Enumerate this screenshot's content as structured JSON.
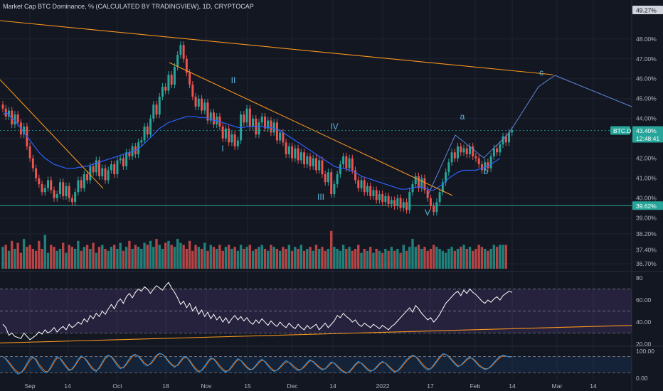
{
  "header": {
    "title": "Market Cap BTC Dominance, % (CALCULATED BY TRADINGVIEW), 1D, CRYPTOCAP"
  },
  "colors": {
    "background": "#131722",
    "grid": "#1f2330",
    "up": "#26a69a",
    "down": "#ef5350",
    "ma": "#2962ff",
    "trendline": "#f7941d",
    "projection": "#5d86d6",
    "rsi_line": "#ffffff",
    "rsi_band": "#7e57c2",
    "stoch_k": "#2196f3",
    "stoch_d": "#ff6d00"
  },
  "chart_data": {
    "type": "candlestick",
    "symbol_tag": "BTC.D",
    "last_price_label": "43.40%",
    "countdown_label": "12:48:41",
    "top_price_label": "49.27%",
    "support_label": "39.62%",
    "price_ticks": [
      "48.00%",
      "47.00%",
      "46.00%",
      "45.00%",
      "44.00%",
      "43.00%",
      "42.00%",
      "41.00%",
      "40.00%",
      "39.00%",
      "38.20%",
      "37.40%",
      "36.70%"
    ],
    "price_ylim": [
      36.45,
      49.6
    ],
    "date_ticks": [
      "Sep",
      "14",
      "Oct",
      "18",
      "Nov",
      "15",
      "Dec",
      "14",
      "2022",
      "17",
      "Feb",
      "14",
      "Mar",
      "14"
    ],
    "wave_labels": [
      "I",
      "II",
      "III",
      "IV",
      "V",
      "a",
      "b",
      "c"
    ],
    "support_level": 39.62,
    "close_series": [
      44.5,
      44.1,
      44.4,
      43.7,
      44.2,
      43.8,
      43.2,
      43.6,
      42.6,
      42.0,
      41.5,
      41.0,
      40.7,
      40.3,
      40.5,
      40.9,
      40.4,
      40.0,
      40.2,
      40.8,
      40.1,
      40.6,
      40.0,
      39.8,
      40.3,
      40.9,
      40.5,
      41.2,
      40.9,
      41.6,
      41.3,
      41.9,
      41.1,
      41.5,
      40.9,
      41.4,
      41.7,
      41.2,
      41.9,
      42.0,
      41.6,
      42.3,
      42.1,
      42.6,
      42.2,
      42.8,
      42.9,
      43.6,
      43.2,
      44.0,
      44.7,
      44.2,
      45.1,
      45.6,
      45.4,
      46.2,
      45.7,
      46.6,
      47.2,
      47.7,
      47.0,
      46.3,
      45.7,
      45.1,
      44.6,
      45.0,
      44.4,
      44.8,
      43.9,
      44.3,
      43.7,
      44.1,
      43.6,
      43.0,
      43.5,
      42.8,
      43.2,
      42.6,
      42.9,
      44.2,
      43.8,
      44.5,
      43.6,
      44.0,
      43.2,
      43.8,
      44.1,
      43.5,
      43.9,
      43.3,
      43.8,
      42.9,
      43.3,
      42.8,
      42.2,
      42.6,
      42.0,
      42.5,
      41.9,
      42.3,
      41.7,
      42.1,
      41.6,
      42.0,
      41.4,
      41.9,
      41.2,
      40.8,
      41.3,
      40.2,
      40.7,
      41.2,
      41.7,
      42.1,
      41.5,
      42.0,
      41.4,
      40.9,
      40.5,
      40.9,
      40.3,
      40.6,
      40.1,
      40.4,
      39.9,
      40.2,
      39.8,
      40.1,
      39.7,
      39.9,
      39.6,
      40.0,
      39.5,
      39.8,
      39.4,
      40.3,
      40.7,
      41.1,
      40.5,
      41.0,
      40.4,
      40.0,
      39.6,
      39.3,
      39.8,
      40.3,
      40.8,
      41.3,
      41.8,
      42.3,
      42.0,
      42.6,
      42.3,
      42.5,
      42.2,
      42.6,
      42.1,
      42.0,
      41.7,
      41.4,
      41.8,
      41.5,
      42.1,
      42.5,
      42.3,
      42.7,
      43.1,
      42.8,
      43.3,
      43.4
    ],
    "ma_series": [
      44.2,
      44.3,
      44.2,
      44.0,
      43.9,
      43.7,
      43.5,
      43.3,
      43.1,
      42.9,
      42.7,
      42.5,
      42.3,
      42.15,
      42.0,
      41.9,
      41.8,
      41.7,
      41.65,
      41.6,
      41.55,
      41.5,
      41.5,
      41.5,
      41.5,
      41.55,
      41.55,
      41.6,
      41.6,
      41.65,
      41.7,
      41.75,
      41.8,
      41.85,
      41.9,
      41.95,
      42.0,
      42.05,
      42.1,
      42.15,
      42.2,
      42.25,
      42.3,
      42.35,
      42.4,
      42.5,
      42.6,
      42.75,
      42.9,
      43.05,
      43.2,
      43.35,
      43.5,
      43.6,
      43.7,
      43.8,
      43.85,
      43.9,
      43.95,
      44.0,
      44.05,
      44.1,
      44.1,
      44.1,
      44.1,
      44.05,
      44.05,
      44.05,
      44.0,
      43.95,
      43.9,
      43.9,
      43.85,
      43.8,
      43.75,
      43.7,
      43.65,
      43.6,
      43.55,
      43.55,
      43.55,
      43.6,
      43.6,
      43.6,
      43.6,
      43.6,
      43.6,
      43.55,
      43.55,
      43.55,
      43.5,
      43.45,
      43.4,
      43.3,
      43.2,
      43.1,
      43.0,
      42.9,
      42.8,
      42.7,
      42.6,
      42.5,
      42.4,
      42.3,
      42.2,
      42.1,
      42.0,
      41.9,
      41.8,
      41.7,
      41.6,
      41.55,
      41.5,
      41.5,
      41.45,
      41.4,
      41.35,
      41.3,
      41.2,
      41.1,
      41.05,
      41.0,
      40.95,
      40.9,
      40.85,
      40.8,
      40.75,
      40.7,
      40.65,
      40.6,
      40.55,
      40.5,
      40.45,
      40.45,
      40.45,
      40.5,
      40.5,
      40.55,
      40.55,
      40.55,
      40.5,
      40.45,
      40.4,
      40.4,
      40.5,
      40.6,
      40.7,
      40.85,
      41.0,
      41.1,
      41.2,
      41.3,
      41.35,
      41.4,
      41.4,
      41.4,
      41.4,
      41.4,
      41.45,
      41.5,
      41.55,
      41.6,
      41.7,
      41.8,
      41.9,
      42.0
    ],
    "volume_series": [
      0.55,
      0.6,
      0.45,
      0.7,
      0.5,
      0.65,
      0.4,
      0.75,
      0.55,
      0.6,
      0.5,
      0.45,
      0.7,
      0.5,
      0.85,
      0.4,
      0.6,
      0.55,
      0.45,
      0.5,
      0.65,
      0.4,
      0.6,
      0.55,
      0.5,
      0.7,
      0.45,
      0.55,
      0.6,
      0.5,
      0.65,
      0.4,
      0.55,
      0.6,
      0.5,
      0.45,
      0.55,
      0.6,
      0.5,
      0.65,
      0.45,
      0.55,
      0.7,
      0.5,
      0.6,
      0.55,
      0.5,
      0.65,
      0.6,
      0.7,
      0.55,
      0.75,
      0.6,
      0.5,
      0.65,
      0.7,
      0.6,
      0.55,
      0.75,
      0.65,
      0.6,
      0.5,
      0.7,
      0.45,
      0.6,
      0.55,
      0.5,
      0.65,
      0.45,
      0.6,
      0.55,
      0.5,
      0.6,
      0.45,
      0.55,
      0.6,
      0.5,
      0.55,
      0.45,
      0.6,
      0.5,
      0.55,
      0.6,
      0.45,
      0.5,
      0.55,
      0.6,
      0.5,
      0.45,
      0.6,
      0.55,
      0.5,
      0.45,
      0.55,
      0.5,
      0.6,
      0.45,
      0.55,
      0.5,
      0.6,
      0.45,
      0.5,
      0.55,
      0.45,
      0.6,
      0.5,
      0.55,
      0.45,
      0.5,
      0.95,
      0.55,
      0.5,
      0.45,
      0.6,
      0.5,
      0.55,
      0.45,
      0.5,
      0.6,
      0.4,
      0.5,
      0.45,
      0.55,
      0.4,
      0.5,
      0.45,
      0.4,
      0.5,
      0.45,
      0.55,
      0.45,
      0.5,
      0.4,
      0.6,
      0.45,
      0.55,
      0.75,
      0.55,
      0.6,
      0.5,
      0.55,
      0.45,
      0.5,
      0.6,
      0.55,
      0.5,
      0.45,
      0.4,
      0.5,
      0.55,
      0.45,
      0.5,
      0.55,
      0.6,
      0.5,
      0.55,
      0.45,
      0.5,
      0.6,
      0.55,
      0.5,
      0.45,
      0.5,
      0.6,
      0.55,
      0.6,
      0.6,
      0.6
    ],
    "rsi": {
      "ylim": [
        20,
        82
      ],
      "ticks": [
        "80",
        "60.00",
        "40.00",
        "20.00"
      ],
      "upper_level": 70,
      "lower_level": 30,
      "values": [
        38,
        35,
        28,
        30,
        27,
        26,
        25,
        30,
        27,
        24,
        26,
        28,
        31,
        29,
        33,
        30,
        32,
        35,
        31,
        34,
        36,
        33,
        38,
        35,
        37,
        40,
        38,
        43,
        40,
        46,
        43,
        48,
        45,
        50,
        47,
        52,
        56,
        52,
        58,
        61,
        57,
        63,
        66,
        62,
        67,
        70,
        68,
        72,
        70,
        66,
        70,
        73,
        71,
        69,
        73,
        76,
        71,
        67,
        62,
        56,
        59,
        53,
        57,
        50,
        54,
        47,
        51,
        45,
        49,
        43,
        47,
        42,
        45,
        40,
        44,
        39,
        43,
        46,
        42,
        45,
        41,
        44,
        40,
        38,
        42,
        39,
        43,
        40,
        37,
        41,
        38,
        36,
        40,
        37,
        35,
        39,
        36,
        34,
        38,
        35,
        33,
        37,
        34,
        36,
        38,
        33,
        36,
        39,
        35,
        38,
        41,
        46,
        44,
        48,
        45,
        43,
        40,
        42,
        38,
        36,
        39,
        37,
        35,
        38,
        36,
        34,
        37,
        35,
        33,
        36,
        38,
        41,
        44,
        47,
        50,
        53,
        49,
        55,
        52,
        48,
        45,
        42,
        44,
        40,
        43,
        47,
        52,
        57,
        60,
        63,
        66,
        68,
        64,
        69,
        66,
        70,
        67,
        65,
        62,
        59,
        57,
        60,
        58,
        61,
        63,
        60,
        64,
        66,
        68,
        67
      ],
      "trendline_start": 21,
      "trendline_end": 37
    },
    "stoch": {
      "ylim": [
        0,
        110
      ],
      "ticks": [
        "100.00",
        "0.00"
      ],
      "k_values": [
        80,
        70,
        55,
        40,
        25,
        15,
        20,
        35,
        55,
        75,
        80,
        65,
        45,
        30,
        20,
        25,
        45,
        65,
        80,
        72,
        55,
        40,
        28,
        35,
        50,
        70,
        82,
        75,
        60,
        42,
        30,
        25,
        40,
        60,
        78,
        85,
        78,
        62,
        45,
        35,
        40,
        55,
        72,
        85,
        88,
        80,
        65,
        50,
        45,
        55,
        70,
        85,
        92,
        88,
        75,
        60,
        48,
        40,
        50,
        65,
        80,
        78,
        62,
        45,
        30,
        22,
        30,
        45,
        62,
        75,
        70,
        55,
        40,
        28,
        22,
        30,
        45,
        60,
        72,
        65,
        50,
        38,
        30,
        35,
        48,
        62,
        70,
        60,
        45,
        32,
        25,
        30,
        42,
        55,
        65,
        58,
        45,
        35,
        28,
        32,
        45,
        58,
        68,
        60,
        48,
        38,
        30,
        35,
        48,
        60,
        55,
        42,
        30,
        22,
        18,
        25,
        38,
        52,
        62,
        55,
        42,
        30,
        25,
        30,
        42,
        55,
        62,
        55,
        42,
        30,
        22,
        28,
        40,
        55,
        68,
        78,
        85,
        80,
        65,
        50,
        38,
        30,
        35,
        50,
        65,
        80,
        90,
        88,
        78,
        65,
        52,
        42,
        48,
        60,
        72,
        78,
        70,
        58,
        45,
        38,
        32,
        35,
        45,
        58,
        70,
        80,
        85,
        82,
        78,
        80
      ],
      "d_values": [
        78,
        72,
        60,
        45,
        32,
        22,
        20,
        30,
        48,
        66,
        76,
        70,
        52,
        38,
        26,
        24,
        38,
        58,
        74,
        74,
        60,
        45,
        32,
        32,
        46,
        64,
        78,
        76,
        64,
        48,
        35,
        28,
        36,
        54,
        72,
        82,
        80,
        68,
        52,
        40,
        38,
        50,
        66,
        80,
        86,
        82,
        70,
        56,
        48,
        52,
        64,
        80,
        90,
        88,
        78,
        64,
        52,
        44,
        47,
        60,
        74,
        77,
        66,
        50,
        36,
        26,
        28,
        40,
        56,
        70,
        72,
        60,
        46,
        34,
        26,
        28,
        40,
        55,
        68,
        66,
        54,
        42,
        33,
        33,
        44,
        57,
        66,
        62,
        50,
        38,
        28,
        29,
        38,
        50,
        60,
        59,
        50,
        40,
        32,
        32,
        40,
        53,
        64,
        62,
        52,
        42,
        34,
        34,
        44,
        56,
        56,
        46,
        35,
        26,
        20,
        23,
        34,
        48,
        58,
        56,
        46,
        35,
        28,
        29,
        38,
        51,
        59,
        56,
        46,
        35,
        26,
        26,
        36,
        50,
        63,
        74,
        82,
        81,
        70,
        56,
        44,
        35,
        34,
        45,
        60,
        75,
        86,
        88,
        81,
        69,
        57,
        46,
        47,
        56,
        67,
        75,
        72,
        62,
        50,
        41,
        35,
        35,
        42,
        54,
        66,
        76,
        82,
        82,
        79,
        80
      ]
    }
  }
}
